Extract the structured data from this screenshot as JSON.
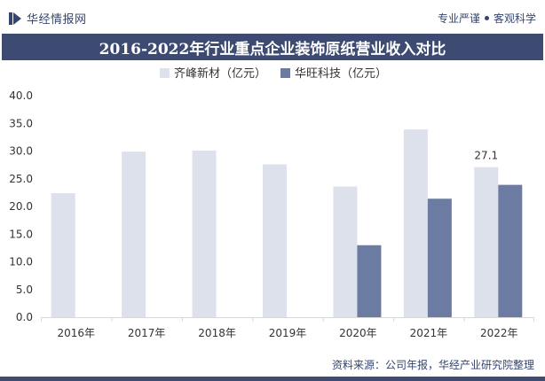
{
  "header": {
    "brand": "华经情报网",
    "slogan_left": "专业严谨",
    "slogan_right": "客观科学"
  },
  "title": "2016-2022年行业重点企业装饰原纸营业收入对比",
  "colors": {
    "header_text": "#34456f",
    "title_bg": "#3d4b73",
    "series_1": "#dde1ec",
    "series_2": "#6b7ba1"
  },
  "chart_data": {
    "type": "bar",
    "categories": [
      "2016年",
      "2017年",
      "2018年",
      "2019年",
      "2020年",
      "2021年",
      "2022年"
    ],
    "series": [
      {
        "name": "齐峰新材（亿元）",
        "values": [
          22.4,
          29.9,
          30.1,
          27.6,
          23.6,
          33.9,
          27.1
        ]
      },
      {
        "name": "华旺科技（亿元）",
        "values": [
          null,
          null,
          null,
          null,
          13.0,
          21.4,
          23.9
        ]
      }
    ],
    "yticks": [
      "0.0",
      "5.0",
      "10.0",
      "15.0",
      "20.0",
      "25.0",
      "30.0",
      "35.0",
      "40.0"
    ],
    "ylim": [
      0,
      40
    ],
    "data_labels": [
      {
        "series": 0,
        "index": 6,
        "text": "27.1"
      }
    ],
    "legend_position": "top-center",
    "grid": false
  },
  "footer": {
    "source": "资料来源：公司年报，华经产业研究院整理"
  }
}
